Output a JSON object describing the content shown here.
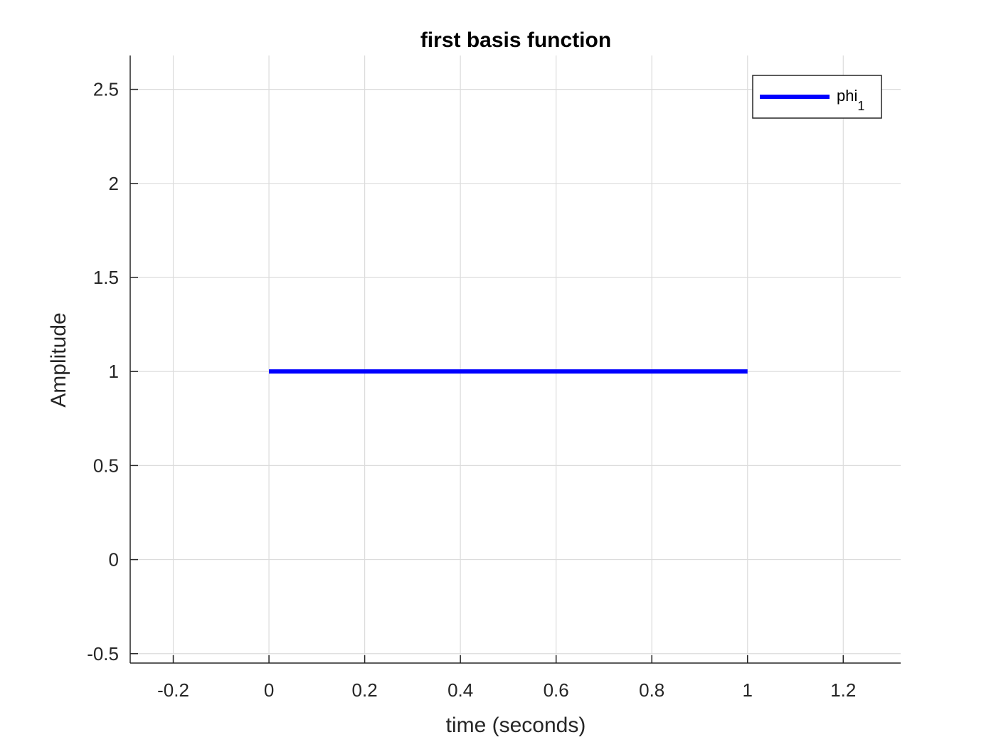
{
  "chart_data": {
    "type": "line",
    "title": "first basis function",
    "xlabel": "time (seconds)",
    "ylabel": "Amplitude",
    "xlim": [
      -0.29,
      1.32
    ],
    "ylim": [
      -0.55,
      2.68
    ],
    "xticks": [
      -0.2,
      0,
      0.2,
      0.4,
      0.6,
      0.8,
      1,
      1.2
    ],
    "xtick_labels": [
      "-0.2",
      "0",
      "0.2",
      "0.4",
      "0.6",
      "0.8",
      "1",
      "1.2"
    ],
    "yticks": [
      -0.5,
      0,
      0.5,
      1,
      1.5,
      2,
      2.5
    ],
    "ytick_labels": [
      "-0.5",
      "0",
      "0.5",
      "1",
      "1.5",
      "2",
      "2.5"
    ],
    "grid": true,
    "legend_position": "top-right",
    "series": [
      {
        "name": "phi",
        "name_subscript": "1",
        "color": "#0000ff",
        "x": [
          0,
          1
        ],
        "y": [
          1,
          1
        ]
      }
    ]
  }
}
